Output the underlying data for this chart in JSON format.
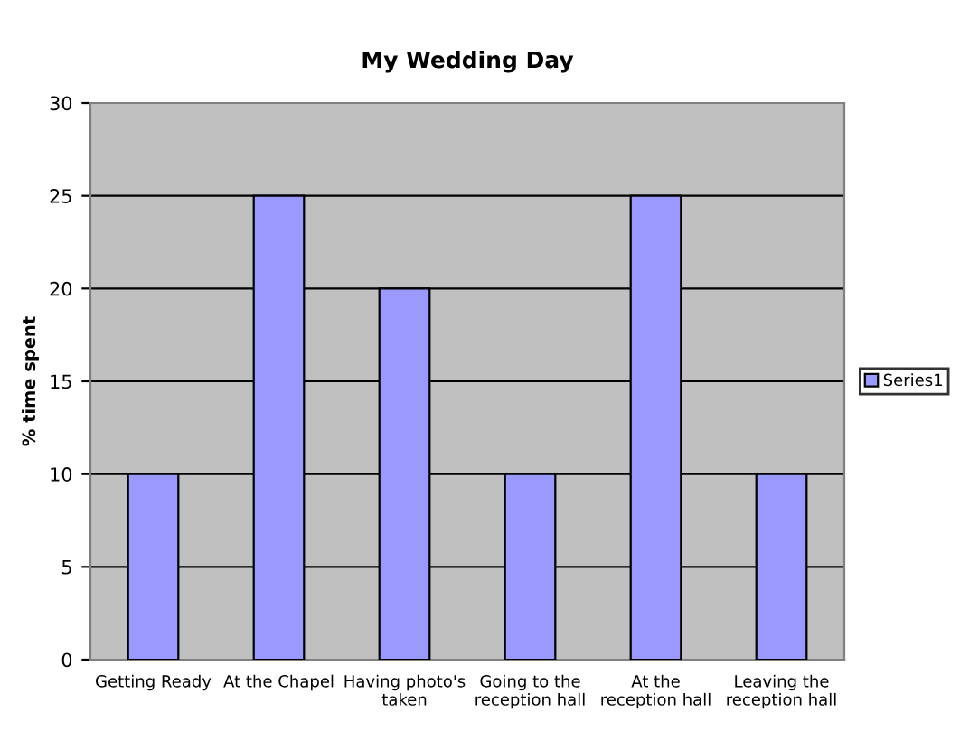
{
  "chart_data": {
    "type": "bar",
    "title": "My Wedding Day",
    "ylabel": "% time spent",
    "categories": [
      "Getting Ready",
      "At the Chapel",
      "Having photo's\ntaken",
      "Going to the\nreception hall",
      "At the\nreception hall",
      "Leaving the\nreception hall"
    ],
    "series": [
      {
        "name": "Series1",
        "color": "#9999ff",
        "values": [
          10,
          25,
          20,
          10,
          25,
          10
        ]
      }
    ],
    "ylim": [
      0,
      30
    ],
    "yticks": [
      0,
      5,
      10,
      15,
      20,
      25,
      30
    ],
    "grid": "y",
    "legend": "right"
  }
}
